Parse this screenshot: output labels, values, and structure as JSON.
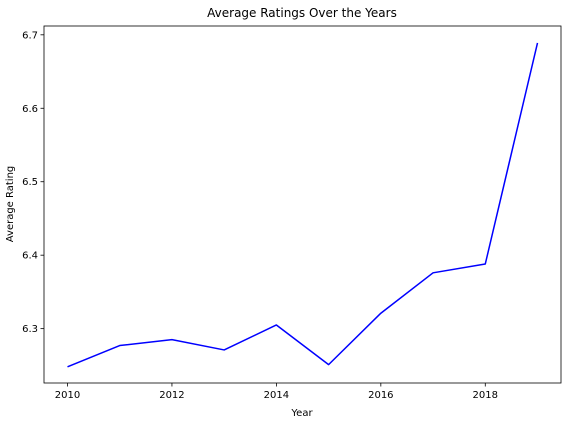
{
  "chart_data": {
    "type": "line",
    "title": "Average Ratings Over the Years",
    "xlabel": "Year",
    "ylabel": "Average Rating",
    "xlim": [
      2009.55,
      2019.45
    ],
    "ylim": [
      6.226,
      6.712
    ],
    "x_ticks": [
      2010,
      2012,
      2014,
      2016,
      2018
    ],
    "y_ticks": [
      6.3,
      6.4,
      6.5,
      6.6,
      6.7
    ],
    "grid": false,
    "series": [
      {
        "color": "#0000ff",
        "x": [
          2010,
          2011,
          2012,
          2013,
          2014,
          2015,
          2016,
          2017,
          2018,
          2019
        ],
        "y": [
          6.248,
          6.277,
          6.285,
          6.271,
          6.305,
          6.251,
          6.321,
          6.376,
          6.388,
          6.689
        ]
      }
    ]
  }
}
